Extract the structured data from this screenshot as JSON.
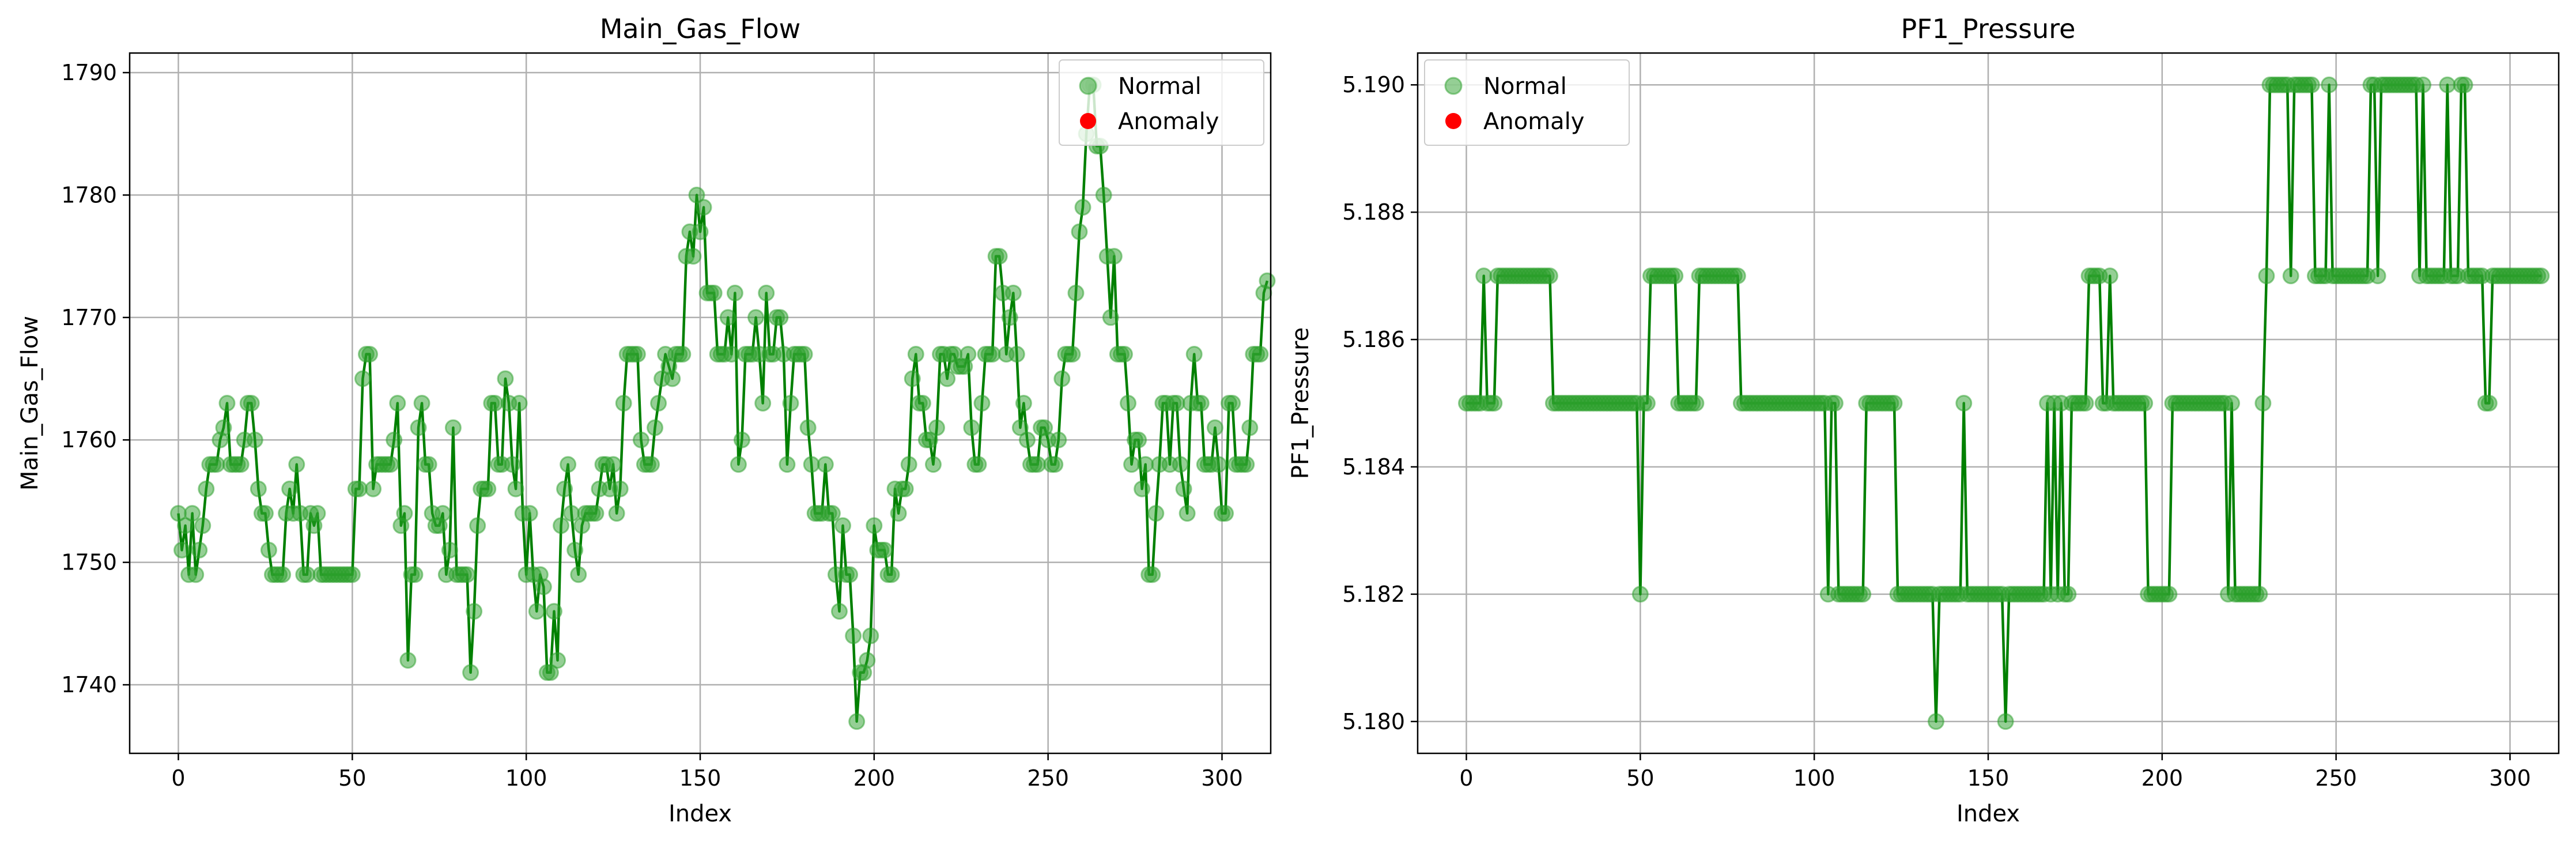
{
  "colors": {
    "line": "#008000",
    "normal": "#2ca02c",
    "anomaly": "#ff0000",
    "grid": "#b0b0b0"
  },
  "chart_data": [
    {
      "type": "line",
      "title": "Main_Gas_Flow",
      "xlabel": "Index",
      "ylabel": "Main_Gas_Flow",
      "xlim": [
        -14,
        314
      ],
      "ylim": [
        1734.4,
        1791.6
      ],
      "xticks": [
        0,
        50,
        100,
        150,
        200,
        250,
        300
      ],
      "xtick_labels": [
        "0",
        "50",
        "100",
        "150",
        "200",
        "250",
        "300"
      ],
      "yticks": [
        1740,
        1750,
        1760,
        1770,
        1780,
        1790
      ],
      "ytick_labels": [
        "1740",
        "1750",
        "1760",
        "1770",
        "1780",
        "1790"
      ],
      "grid": true,
      "legend_position": "top-right",
      "legend": [
        "Normal",
        "Anomaly"
      ],
      "series": [
        {
          "name": "Normal",
          "values": [
            1754,
            1751,
            1753,
            1749,
            1754,
            1749,
            1751,
            1753,
            1756,
            1758,
            1758,
            1758,
            1760,
            1761,
            1763,
            1758,
            1758,
            1758,
            1758,
            1760,
            1763,
            1763,
            1760,
            1756,
            1754,
            1754,
            1751,
            1749,
            1749,
            1749,
            1749,
            1754,
            1756,
            1754,
            1758,
            1754,
            1749,
            1749,
            1754,
            1753,
            1754,
            1749,
            1749,
            1749,
            1749,
            1749,
            1749,
            1749,
            1749,
            1749,
            1749,
            1756,
            1756,
            1765,
            1767,
            1767,
            1756,
            1758,
            1758,
            1758,
            1758,
            1758,
            1760,
            1763,
            1753,
            1754,
            1742,
            1749,
            1749,
            1761,
            1763,
            1758,
            1758,
            1754,
            1753,
            1753,
            1754,
            1749,
            1751,
            1761,
            1749,
            1749,
            1749,
            1749,
            1741,
            1746,
            1753,
            1756,
            1756,
            1756,
            1763,
            1763,
            1758,
            1758,
            1765,
            1763,
            1758,
            1756,
            1763,
            1754,
            1749,
            1754,
            1749,
            1746,
            1749,
            1748,
            1741,
            1741,
            1746,
            1742,
            1753,
            1756,
            1758,
            1754,
            1751,
            1749,
            1753,
            1754,
            1754,
            1754,
            1754,
            1756,
            1758,
            1758,
            1756,
            1758,
            1754,
            1756,
            1763,
            1767,
            1767,
            1767,
            1767,
            1760,
            1758,
            1758,
            1758,
            1761,
            1763,
            1765,
            1767,
            1766,
            1765,
            1767,
            1767,
            1767,
            1775,
            1777,
            1775,
            1780,
            1777,
            1779,
            1772,
            1772,
            1772,
            1767,
            1767,
            1767,
            1770,
            1767,
            1772,
            1758,
            1760,
            1767,
            1767,
            1767,
            1770,
            1767,
            1763,
            1772,
            1767,
            1767,
            1770,
            1770,
            1767,
            1758,
            1763,
            1767,
            1767,
            1767,
            1767,
            1761,
            1758,
            1754,
            1754,
            1754,
            1758,
            1754,
            1754,
            1749,
            1746,
            1753,
            1749,
            1749,
            1744,
            1737,
            1741,
            1741,
            1742,
            1744,
            1753,
            1751,
            1751,
            1751,
            1749,
            1749,
            1756,
            1754,
            1756,
            1756,
            1758,
            1765,
            1767,
            1763,
            1763,
            1760,
            1760,
            1758,
            1761,
            1767,
            1767,
            1765,
            1767,
            1767,
            1766,
            1766,
            1766,
            1767,
            1761,
            1758,
            1758,
            1763,
            1767,
            1767,
            1767,
            1775,
            1775,
            1772,
            1767,
            1770,
            1772,
            1767,
            1761,
            1763,
            1760,
            1758,
            1758,
            1758,
            1761,
            1761,
            1760,
            1758,
            1758,
            1760,
            1765,
            1767,
            1767,
            1767,
            1772,
            1777,
            1779,
            1785,
            1789,
            1789,
            1784,
            1784,
            1780,
            1775,
            1770,
            1775,
            1767,
            1767,
            1767,
            1763,
            1758,
            1760,
            1760,
            1756,
            1758,
            1749,
            1749,
            1754,
            1758,
            1763,
            1763,
            1758,
            1763,
            1763,
            1758,
            1756,
            1754,
            1763,
            1767,
            1763,
            1763,
            1758,
            1758,
            1758,
            1761,
            1758,
            1754,
            1754,
            1763,
            1763,
            1758,
            1758,
            1758,
            1758,
            1761,
            1767,
            1767,
            1767,
            1772,
            1773
          ]
        },
        {
          "name": "Anomaly",
          "values": []
        }
      ]
    },
    {
      "type": "line",
      "title": "PF1_Pressure",
      "xlabel": "Index",
      "ylabel": "PF1_Pressure",
      "xlim": [
        -14,
        314
      ],
      "ylim": [
        5.1795,
        5.1905
      ],
      "xticks": [
        0,
        50,
        100,
        150,
        200,
        250,
        300
      ],
      "xtick_labels": [
        "0",
        "50",
        "100",
        "150",
        "200",
        "250",
        "300"
      ],
      "yticks": [
        5.18,
        5.182,
        5.184,
        5.186,
        5.188,
        5.19
      ],
      "ytick_labels": [
        "5.180",
        "5.182",
        "5.184",
        "5.186",
        "5.188",
        "5.190"
      ],
      "grid": true,
      "legend_position": "top-left",
      "legend": [
        "Normal",
        "Anomaly"
      ],
      "series": [
        {
          "name": "Normal",
          "values": [
            5.185,
            5.185,
            5.185,
            5.185,
            5.185,
            5.187,
            5.185,
            5.185,
            5.185,
            5.187,
            5.187,
            5.187,
            5.187,
            5.187,
            5.187,
            5.187,
            5.187,
            5.187,
            5.187,
            5.187,
            5.187,
            5.187,
            5.187,
            5.187,
            5.187,
            5.185,
            5.185,
            5.185,
            5.185,
            5.185,
            5.185,
            5.185,
            5.185,
            5.185,
            5.185,
            5.185,
            5.185,
            5.185,
            5.185,
            5.185,
            5.185,
            5.185,
            5.185,
            5.185,
            5.185,
            5.185,
            5.185,
            5.185,
            5.185,
            5.185,
            5.182,
            5.185,
            5.185,
            5.187,
            5.187,
            5.187,
            5.187,
            5.187,
            5.187,
            5.187,
            5.187,
            5.185,
            5.185,
            5.185,
            5.185,
            5.185,
            5.185,
            5.187,
            5.187,
            5.187,
            5.187,
            5.187,
            5.187,
            5.187,
            5.187,
            5.187,
            5.187,
            5.187,
            5.187,
            5.185,
            5.185,
            5.185,
            5.185,
            5.185,
            5.185,
            5.185,
            5.185,
            5.185,
            5.185,
            5.185,
            5.185,
            5.185,
            5.185,
            5.185,
            5.185,
            5.185,
            5.185,
            5.185,
            5.185,
            5.185,
            5.185,
            5.185,
            5.185,
            5.185,
            5.182,
            5.185,
            5.185,
            5.182,
            5.182,
            5.182,
            5.182,
            5.182,
            5.182,
            5.182,
            5.182,
            5.185,
            5.185,
            5.185,
            5.185,
            5.185,
            5.185,
            5.185,
            5.185,
            5.185,
            5.182,
            5.182,
            5.182,
            5.182,
            5.182,
            5.182,
            5.182,
            5.182,
            5.182,
            5.182,
            5.182,
            5.18,
            5.182,
            5.182,
            5.182,
            5.182,
            5.182,
            5.182,
            5.182,
            5.185,
            5.182,
            5.182,
            5.182,
            5.182,
            5.182,
            5.182,
            5.182,
            5.182,
            5.182,
            5.182,
            5.182,
            5.18,
            5.182,
            5.182,
            5.182,
            5.182,
            5.182,
            5.182,
            5.182,
            5.182,
            5.182,
            5.182,
            5.182,
            5.185,
            5.182,
            5.185,
            5.182,
            5.185,
            5.182,
            5.182,
            5.185,
            5.185,
            5.185,
            5.185,
            5.185,
            5.187,
            5.187,
            5.187,
            5.187,
            5.185,
            5.185,
            5.187,
            5.185,
            5.185,
            5.185,
            5.185,
            5.185,
            5.185,
            5.185,
            5.185,
            5.185,
            5.185,
            5.182,
            5.182,
            5.182,
            5.182,
            5.182,
            5.182,
            5.182,
            5.185,
            5.185,
            5.185,
            5.185,
            5.185,
            5.185,
            5.185,
            5.185,
            5.185,
            5.185,
            5.185,
            5.185,
            5.185,
            5.185,
            5.185,
            5.185,
            5.182,
            5.185,
            5.182,
            5.182,
            5.182,
            5.182,
            5.182,
            5.182,
            5.182,
            5.182,
            5.185,
            5.187,
            5.19,
            5.19,
            5.19,
            5.19,
            5.19,
            5.19,
            5.187,
            5.19,
            5.19,
            5.19,
            5.19,
            5.19,
            5.19,
            5.187,
            5.187,
            5.187,
            5.187,
            5.19,
            5.187,
            5.187,
            5.187,
            5.187,
            5.187,
            5.187,
            5.187,
            5.187,
            5.187,
            5.187,
            5.187,
            5.19,
            5.19,
            5.187,
            5.19,
            5.19,
            5.19,
            5.19,
            5.19,
            5.19,
            5.19,
            5.19,
            5.19,
            5.19,
            5.19,
            5.187,
            5.19,
            5.187,
            5.187,
            5.187,
            5.187,
            5.187,
            5.187,
            5.19,
            5.187,
            5.187,
            5.187,
            5.19,
            5.19,
            5.187,
            5.187,
            5.187,
            5.187,
            5.187,
            5.185,
            5.185,
            5.187,
            5.187,
            5.187,
            5.187,
            5.187,
            5.187,
            5.187,
            5.187,
            5.187,
            5.187,
            5.187,
            5.187,
            5.187,
            5.187,
            5.187
          ]
        },
        {
          "name": "Anomaly",
          "values": []
        }
      ]
    }
  ]
}
